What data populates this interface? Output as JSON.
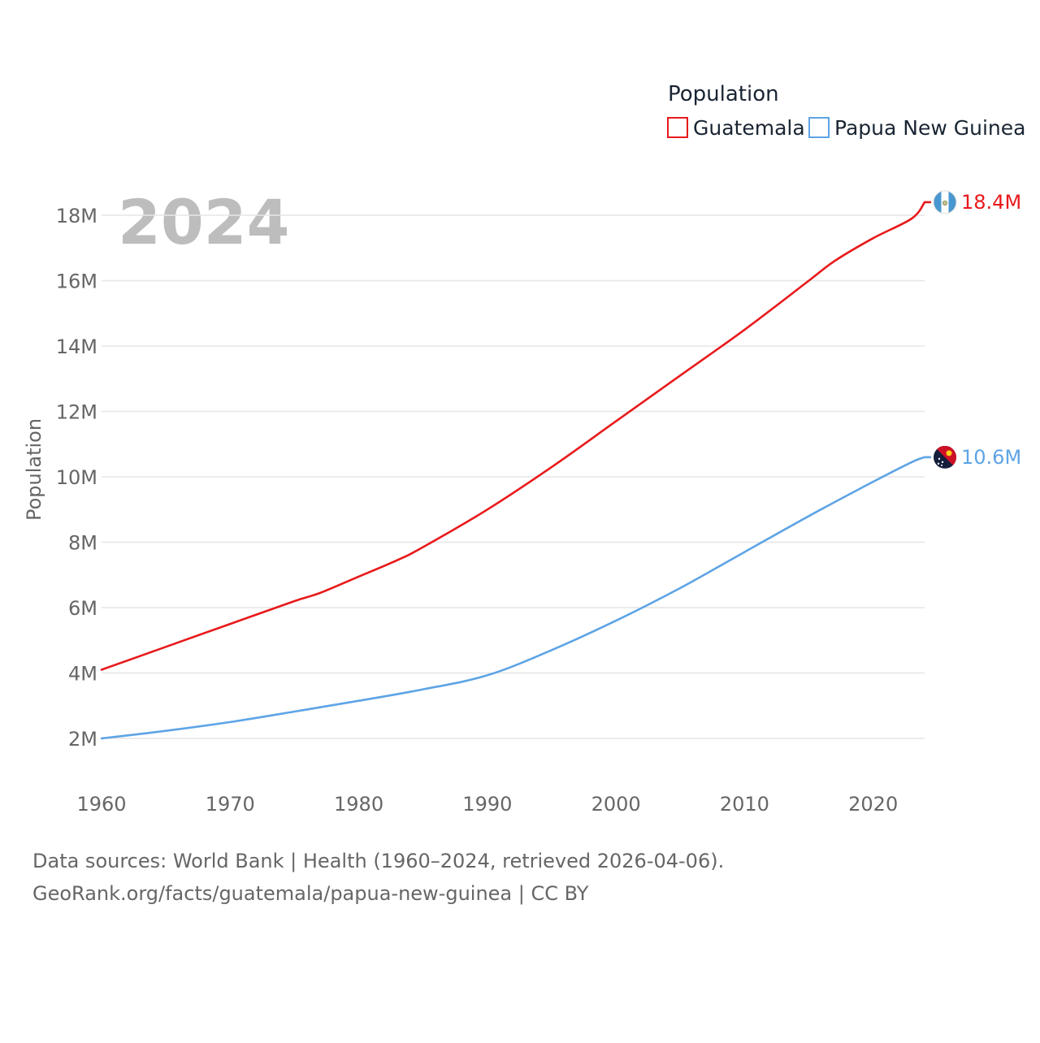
{
  "chart_data": {
    "type": "line",
    "title": "",
    "legend_title": "Population",
    "ylabel": "Population",
    "xlabel": "",
    "year_label": "2024",
    "xlim": [
      1960,
      2024
    ],
    "ylim": [
      1000000,
      19500000
    ],
    "x_ticks": [
      1960,
      1970,
      1980,
      1990,
      2000,
      2010,
      2020
    ],
    "y_ticks": [
      {
        "value": 2000000,
        "label": "2M"
      },
      {
        "value": 4000000,
        "label": "4M"
      },
      {
        "value": 6000000,
        "label": "6M"
      },
      {
        "value": 8000000,
        "label": "8M"
      },
      {
        "value": 10000000,
        "label": "10M"
      },
      {
        "value": 12000000,
        "label": "12M"
      },
      {
        "value": 14000000,
        "label": "14M"
      },
      {
        "value": 16000000,
        "label": "16M"
      },
      {
        "value": 18000000,
        "label": "18M"
      }
    ],
    "series": [
      {
        "name": "Guatemala",
        "color": "#e8191b",
        "end_label": "18.4M",
        "flag_icon": "guatemala-flag-icon",
        "x": [
          1960,
          1965,
          1970,
          1975,
          1977,
          1980,
          1983,
          1985,
          1990,
          1995,
          2000,
          2005,
          2010,
          2015,
          2017,
          2020,
          2023,
          2024
        ],
        "values": [
          4100000,
          4800000,
          5500000,
          6200000,
          6450000,
          6950000,
          7450000,
          7850000,
          9000000,
          10300000,
          11700000,
          13100000,
          14500000,
          16000000,
          16600000,
          17300000,
          17900000,
          18400000
        ]
      },
      {
        "name": "Papua New Guinea",
        "color": "#5ea4e5",
        "end_label": "10.6M",
        "flag_icon": "papua-new-guinea-flag-icon",
        "x": [
          1960,
          1965,
          1970,
          1975,
          1980,
          1985,
          1990,
          1995,
          2000,
          2005,
          2010,
          2015,
          2020,
          2023,
          2024
        ],
        "values": [
          2000000,
          2230000,
          2500000,
          2820000,
          3150000,
          3500000,
          3930000,
          4700000,
          5600000,
          6600000,
          7700000,
          8800000,
          9850000,
          10450000,
          10600000
        ]
      }
    ]
  },
  "footer": {
    "source_line": "Data sources: World Bank | Health (1960–2024, retrieved 2026-04-06).",
    "credit_line": "GeoRank.org/facts/guatemala/papua-new-guinea | CC BY"
  }
}
